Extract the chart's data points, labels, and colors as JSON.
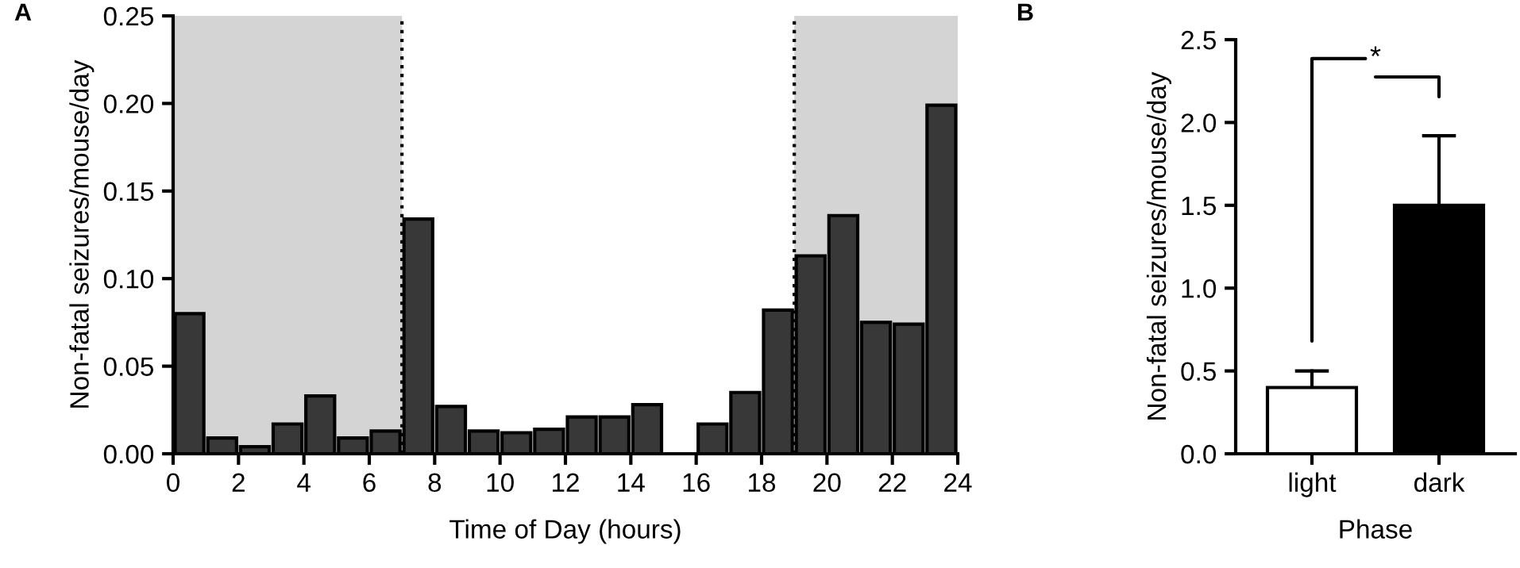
{
  "chart_data": [
    {
      "type": "histogram",
      "xlabel": "Time of Day (hours)",
      "ylabel": "Non-fatal seizures/mouse/day",
      "annotations": [
        "A"
      ],
      "bins": [
        0,
        1,
        2,
        3,
        4,
        5,
        6,
        7,
        8,
        9,
        10,
        11,
        12,
        13,
        14,
        15,
        16,
        17,
        18,
        19,
        20,
        21,
        22,
        23,
        24
      ],
      "values": [
        0.08,
        0.009,
        0.004,
        0.017,
        0.033,
        0.009,
        0.013,
        0.134,
        0.027,
        0.013,
        0.012,
        0.014,
        0.021,
        0.021,
        0.028,
        null,
        0.017,
        0.035,
        0.082,
        0.113,
        0.136,
        0.075,
        0.074,
        0.199
      ],
      "color": "#383838",
      "xlim": [
        0,
        24
      ],
      "xticks": [
        0,
        2,
        4,
        6,
        8,
        10,
        12,
        14,
        16,
        18,
        20,
        22,
        24
      ],
      "ylim": [
        0,
        0.25
      ],
      "yticks": [
        {
          "value": 0,
          "label": "0.00"
        },
        {
          "value": 0.05,
          "label": "0.05"
        },
        {
          "value": 0.1,
          "label": "0.10"
        },
        {
          "value": 0.15,
          "label": "0.15"
        },
        {
          "value": 0.2,
          "label": "0.20"
        },
        {
          "value": 0.25,
          "label": "0.25"
        }
      ],
      "bands": [
        {
          "axis": "x",
          "from": 0,
          "to": 7,
          "color": "#d4d4d4"
        },
        {
          "axis": "x",
          "from": 19,
          "to": 24,
          "color": "#d4d4d4"
        }
      ],
      "ref_lines": [
        {
          "axis": "x",
          "value": 7,
          "line_style": "dotted"
        },
        {
          "axis": "x",
          "value": 19,
          "line_style": "dotted"
        }
      ],
      "grid": false
    },
    {
      "type": "bar",
      "xlabel": "Phase",
      "ylabel": "Non-fatal seizures/mouse/day",
      "annotations": [
        "B",
        "*"
      ],
      "categories": [
        "light",
        "dark"
      ],
      "values": [
        0.4,
        1.5
      ],
      "colors": [
        "#ffffff",
        "#000000"
      ],
      "errors": [
        [
          0.4,
          0.5
        ],
        [
          1.5,
          1.92
        ]
      ],
      "ylim": [
        0,
        2.5
      ],
      "yticks": [
        {
          "value": 0,
          "label": "0.0"
        },
        {
          "value": 0.5,
          "label": "0.5"
        },
        {
          "value": 1,
          "label": "1.0"
        },
        {
          "value": 1.5,
          "label": "1.5"
        },
        {
          "value": 2,
          "label": "2.0"
        },
        {
          "value": 2.5,
          "label": "2.5"
        }
      ],
      "grid": false
    }
  ]
}
